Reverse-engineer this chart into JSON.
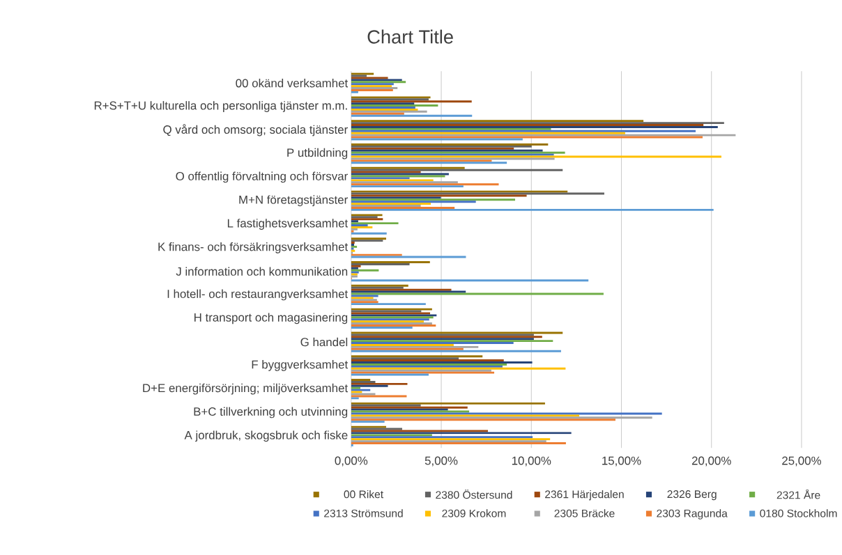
{
  "chart_data": {
    "type": "bar",
    "orientation": "horizontal",
    "title": "Chart Title",
    "categories": [
      "00 okänd verksamhet",
      "R+S+T+U kulturella och personliga tjänster m.m.",
      "Q vård och omsorg; sociala tjänster",
      "P utbildning",
      "O offentlig förvaltning och försvar",
      "M+N företagstjänster",
      "L fastighetsverksamhet",
      "K finans- och försäkringsverksamhet",
      "J information och kommunikation",
      "I hotell- och restaurangverksamhet",
      "H transport och magasinering",
      "G handel",
      "F byggverksamhet",
      "D+E energiförsörjning; miljöverksamhet",
      "B+C tillverkning och utvinning",
      "A jordbruk, skogsbruk och fiske"
    ],
    "series": [
      {
        "name": "00 Riket",
        "color": "#997300",
        "values": [
          1.25,
          4.4,
          16.23,
          10.93,
          6.3,
          12.01,
          1.73,
          1.94,
          4.37,
          3.17,
          4.49,
          11.74,
          7.29,
          1.06,
          10.76,
          1.94
        ]
      },
      {
        "name": "2380 Östersund",
        "color": "#636363",
        "values": [
          0.86,
          4.3,
          20.7,
          10.02,
          11.74,
          14.05,
          1.46,
          1.76,
          3.24,
          2.9,
          3.89,
          10.14,
          5.97,
          1.34,
          3.86,
          2.83
        ]
      },
      {
        "name": "2361 Härjedalen",
        "color": "#9e480e",
        "values": [
          2.04,
          6.69,
          19.56,
          9.03,
          3.86,
          9.74,
          1.76,
          0.19,
          0.53,
          5.56,
          4.38,
          10.6,
          8.47,
          3.12,
          6.46,
          7.59
        ]
      },
      {
        "name": "2326 Berg",
        "color": "#264478",
        "values": [
          2.82,
          3.5,
          20.35,
          10.63,
          5.42,
          4.98,
          0.39,
          0.16,
          0.39,
          6.36,
          4.74,
          10.14,
          10.05,
          2.04,
          5.37,
          12.22
        ]
      },
      {
        "name": "2321 Åre",
        "color": "#70ad47",
        "values": [
          3.03,
          4.82,
          11.09,
          11.87,
          5.21,
          9.1,
          2.62,
          0.32,
          1.53,
          14.01,
          4.56,
          11.2,
          8.64,
          0.51,
          6.55,
          4.49
        ]
      },
      {
        "name": "2313 Strömsund",
        "color": "#4472c4",
        "values": [
          2.36,
          3.56,
          19.12,
          11.25,
          3.24,
          6.92,
          0.92,
          0.14,
          0.42,
          1.5,
          4.33,
          9.01,
          8.4,
          1.06,
          17.25,
          10.07
        ]
      },
      {
        "name": "2309 Krokom",
        "color": "#ffc000",
        "values": [
          2.25,
          3.7,
          15.21,
          20.55,
          4.56,
          4.42,
          1.18,
          0.21,
          0.35,
          1.23,
          4.03,
          5.69,
          11.9,
          0.6,
          12.66,
          11.04
        ]
      },
      {
        "name": "2305 Bräcke",
        "color": "#a5a5a5",
        "values": [
          2.57,
          4.21,
          21.34,
          11.29,
          5.92,
          3.86,
          0.35,
          0.09,
          0.35,
          1.43,
          4.49,
          7.06,
          7.78,
          1.34,
          16.71,
          10.83
        ]
      },
      {
        "name": "2303 Ragunda",
        "color": "#ed7d31",
        "values": [
          2.32,
          2.94,
          19.51,
          7.8,
          8.19,
          5.74,
          0.14,
          2.82,
          0.04,
          1.5,
          4.7,
          6.23,
          7.94,
          3.08,
          14.67,
          11.92
        ]
      },
      {
        "name": "0180 Stockholm",
        "color": "#5b9bd5",
        "values": [
          0.39,
          6.71,
          9.52,
          8.64,
          6.23,
          20.12,
          1.97,
          6.37,
          13.17,
          4.14,
          3.4,
          11.65,
          4.3,
          0.42,
          1.85,
          0.11
        ]
      }
    ],
    "xlim": [
      0,
      25
    ],
    "xticks": [
      {
        "value": 0,
        "label": "0,00%"
      },
      {
        "value": 5,
        "label": "5,00%"
      },
      {
        "value": 10,
        "label": "10,00%"
      },
      {
        "value": 15,
        "label": "15,00%"
      },
      {
        "value": 20,
        "label": "20,00%"
      },
      {
        "value": 25,
        "label": "25,00%"
      }
    ],
    "grid": "x",
    "legend": "bottom"
  }
}
